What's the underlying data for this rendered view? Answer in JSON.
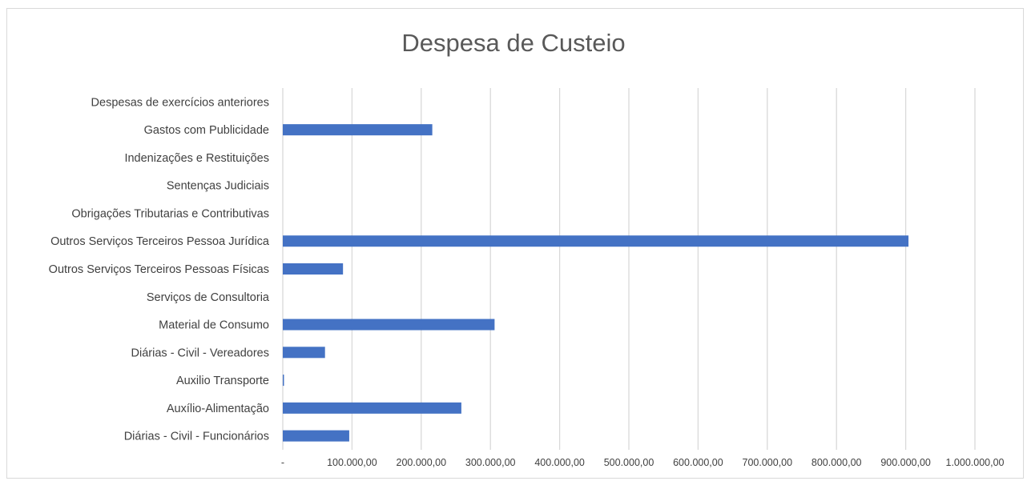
{
  "chart_data": {
    "type": "bar",
    "orientation": "horizontal",
    "title": "Despesa de Custeio",
    "categories": [
      "Despesas de exercícios anteriores",
      "Gastos com Publicidade",
      "Indenizações e Restituições",
      "Sentenças Judiciais",
      "Obrigações Tributarias e Contributivas",
      "Outros Serviços Terceiros Pessoa Jurídica",
      "Outros Serviços Terceiros Pessoas Físicas",
      "Serviços de Consultoria",
      "Material de Consumo",
      "Diárias - Civil - Vereadores",
      "Auxilio Transporte",
      "Auxílio-Alimentação",
      "Diárias - Civil - Funcionários"
    ],
    "values": [
      0,
      216000,
      0,
      0,
      0,
      904000,
      87000,
      0,
      306000,
      61000,
      1500,
      258000,
      96000
    ],
    "xlim": [
      0,
      1000000
    ],
    "xticks": [
      0,
      100000,
      200000,
      300000,
      400000,
      500000,
      600000,
      700000,
      800000,
      900000,
      1000000
    ],
    "xtick_labels": [
      "-",
      "100.000,00",
      "200.000,00",
      "300.000,00",
      "400.000,00",
      "500.000,00",
      "600.000,00",
      "700.000,00",
      "800.000,00",
      "900.000,00",
      "1.000.000,00"
    ],
    "grid": true,
    "bar_color": "#4472c4",
    "grid_color": "#d9d9d9"
  }
}
